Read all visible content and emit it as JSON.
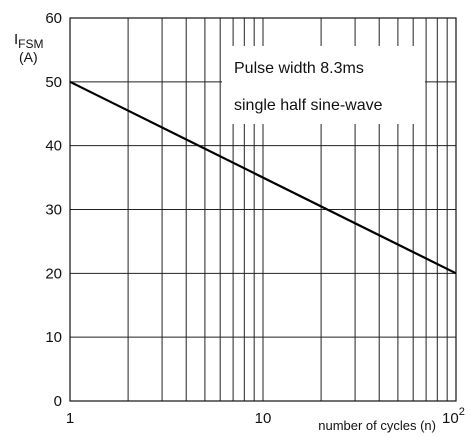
{
  "chart_data": {
    "type": "line",
    "x_scale": "log",
    "xlim": [
      1,
      100
    ],
    "ylim": [
      0,
      60
    ],
    "grid": true,
    "y_ticks": [
      "0",
      "10",
      "20",
      "30",
      "40",
      "50",
      "60"
    ],
    "x_ticks": [
      "1",
      "10"
    ],
    "x_tick_last_base": "10",
    "x_tick_last_exp": "2",
    "ylabel_main": "I",
    "ylabel_sub": "FSM",
    "ylabel_unit": "(A)",
    "xlabel": "number of cycles (n)",
    "annotation_lines": [
      "Pulse width 8.3ms",
      "single half sine-wave"
    ],
    "series": [
      {
        "x": [
          1,
          100
        ],
        "y": [
          50,
          20
        ]
      }
    ]
  }
}
